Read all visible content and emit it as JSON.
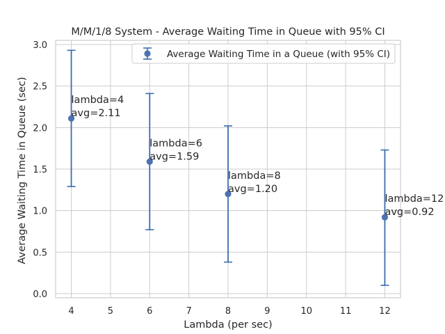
{
  "chart_data": {
    "type": "scatter",
    "title": "M/M/1/8 System - Average Waiting Time in Queue with 95% CI",
    "xlabel": "Lambda (per sec)",
    "ylabel": "Average Waiting Time in Queue (sec)",
    "xlim": [
      3.6,
      12.4
    ],
    "ylim": [
      -0.05,
      3.05
    ],
    "xticks": [
      4,
      5,
      6,
      7,
      8,
      9,
      10,
      11,
      12
    ],
    "yticks": [
      0.0,
      0.5,
      1.0,
      1.5,
      2.0,
      2.5,
      3.0
    ],
    "ytick_labels": [
      "0.0",
      "0.5",
      "1.0",
      "1.5",
      "2.0",
      "2.5",
      "3.0"
    ],
    "grid": true,
    "legend_position": "top-right",
    "color": "#4c72b0",
    "errorbar_color": "#3b6cb0",
    "series": [
      {
        "name": "Average Waiting Time in a Queue (with 95% CI)",
        "x": [
          4,
          6,
          8,
          12
        ],
        "y": [
          2.11,
          1.59,
          1.2,
          0.92
        ],
        "ci_lower": [
          1.29,
          0.77,
          0.38,
          0.1
        ],
        "ci_upper": [
          2.93,
          2.41,
          2.02,
          1.73
        ]
      }
    ],
    "annotations": [
      {
        "line1": "lambda=4",
        "line2": "avg=2.11"
      },
      {
        "line1": "lambda=6",
        "line2": "avg=1.59"
      },
      {
        "line1": "lambda=8",
        "line2": "avg=1.20"
      },
      {
        "line1": "lambda=12",
        "line2": "avg=0.92"
      }
    ]
  }
}
